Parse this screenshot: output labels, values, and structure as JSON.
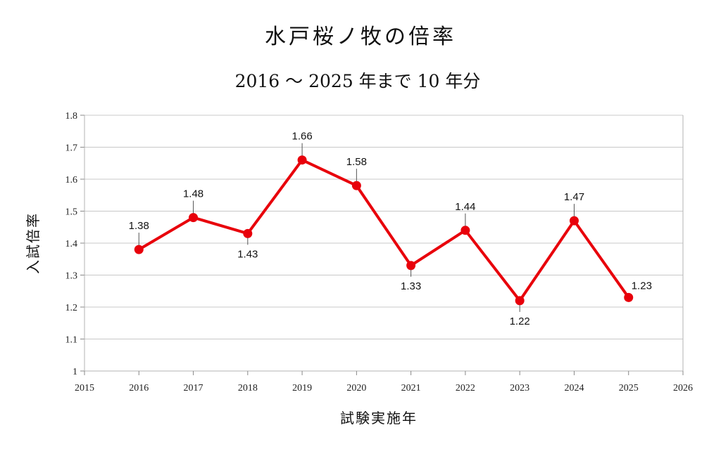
{
  "chart_data": {
    "type": "line",
    "title": "水戸桜ノ牧の倍率",
    "subtitle": "2016 ～ 2025 年まで 10 年分",
    "xlabel": "試験実施年",
    "ylabel": "入試倍率",
    "xlim": [
      2015,
      2026
    ],
    "ylim": [
      1,
      1.8
    ],
    "x_ticks": [
      "2015",
      "2016",
      "2017",
      "2018",
      "2019",
      "2020",
      "2021",
      "2022",
      "2023",
      "2024",
      "2025",
      "2026"
    ],
    "y_ticks": [
      "1",
      "1.1",
      "1.2",
      "1.3",
      "1.4",
      "1.5",
      "1.6",
      "1.7",
      "1.8"
    ],
    "grid": true,
    "series": [
      {
        "name": "入試倍率",
        "color": "#e8000b",
        "x": [
          2016,
          2017,
          2018,
          2019,
          2020,
          2021,
          2022,
          2023,
          2024,
          2025
        ],
        "values": [
          1.38,
          1.48,
          1.43,
          1.66,
          1.58,
          1.33,
          1.44,
          1.22,
          1.47,
          1.23
        ],
        "labels": [
          "1.38",
          "1.48",
          "1.43",
          "1.66",
          "1.58",
          "1.33",
          "1.44",
          "1.22",
          "1.47",
          "1.23"
        ],
        "label_positions": [
          "above",
          "above",
          "below",
          "above",
          "above",
          "below",
          "above",
          "below",
          "above",
          "above-right"
        ]
      }
    ]
  }
}
